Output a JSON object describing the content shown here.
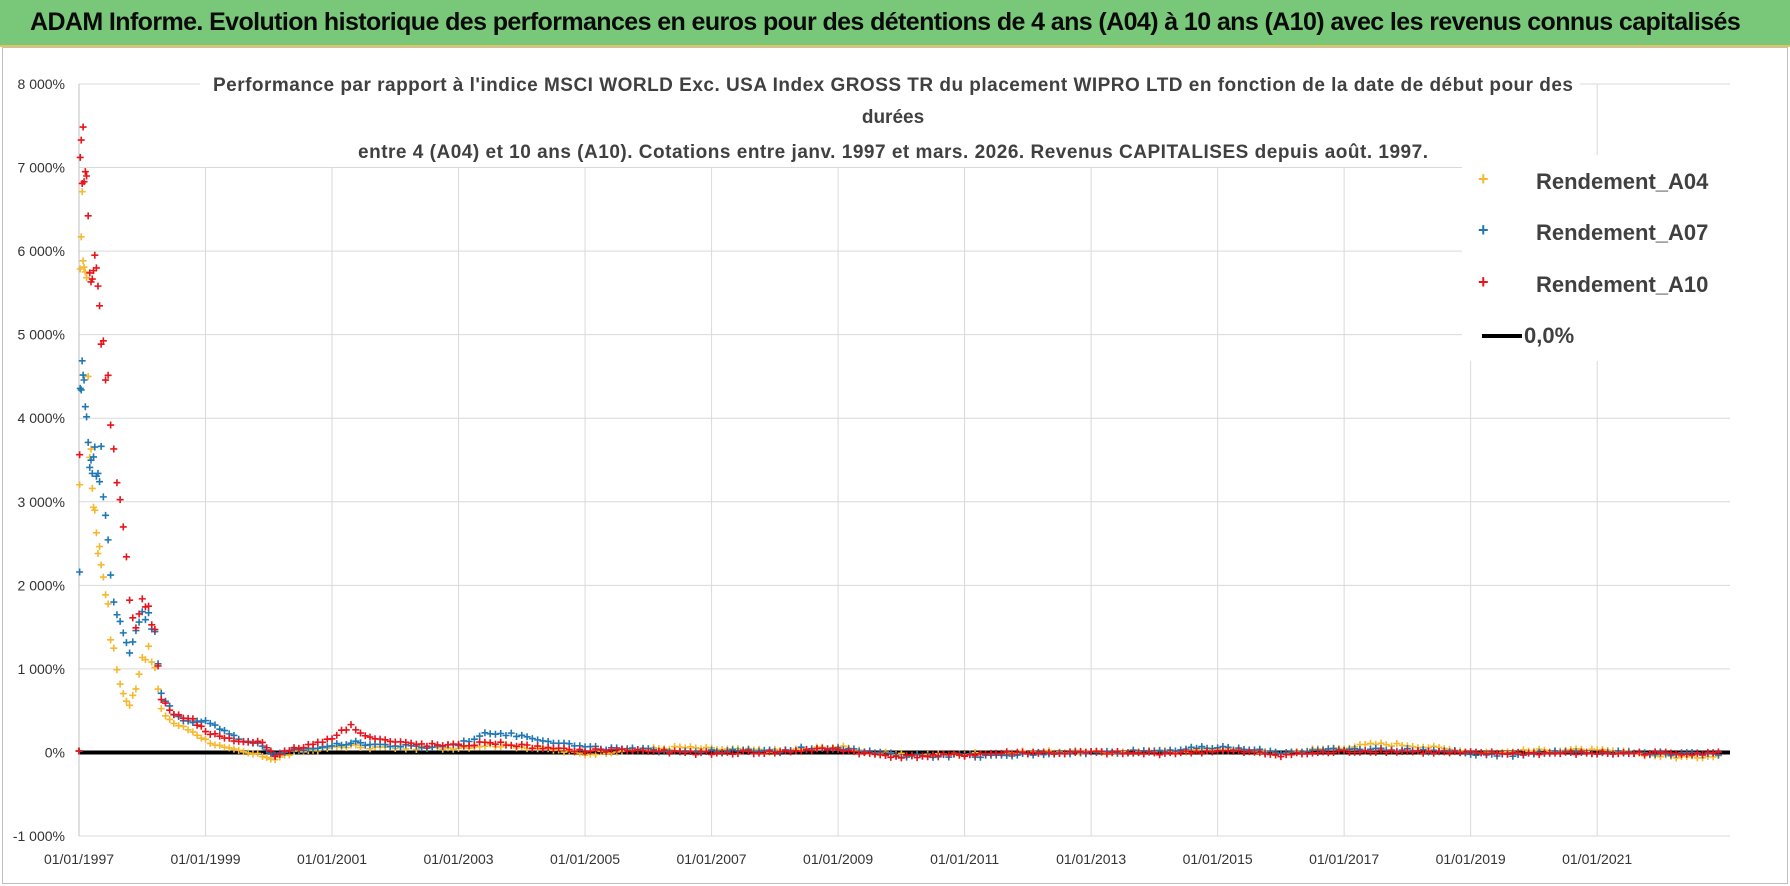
{
  "header": {
    "title": "ADAM Informe. Evolution historique des performances en euros pour des détentions de 4 ans (A04) à 10 ans (A10) avec les revenus connus capitalisés"
  },
  "chart_data": {
    "type": "scatter",
    "title_lines": [
      "Performance par rapport à l'indice MSCI WORLD Exc. USA Index GROSS TR  du placement WIPRO LTD en fonction de la date de début pour des",
      "durées",
      "entre 4 (A04) et 10 ans (A10). Cotations entre janv. 1997 et mars. 2026. Revenus CAPITALISES depuis août. 1997."
    ],
    "y_ticks": [
      "-1 000%",
      "0%",
      "1 000%",
      "2 000%",
      "3 000%",
      "4 000%",
      "5 000%",
      "6 000%",
      "7 000%",
      "8 000%"
    ],
    "x_ticks": [
      "01/01/1997",
      "01/01/1999",
      "01/01/2001",
      "01/01/2003",
      "01/01/2005",
      "01/01/2007",
      "01/01/2009",
      "01/01/2011",
      "01/01/2013",
      "01/01/2015",
      "01/01/2017",
      "01/01/2019",
      "01/01/2021"
    ],
    "ylim": [
      -1000,
      8000
    ],
    "xlim": [
      1997.0,
      2023.1
    ],
    "grid": true,
    "legend_position": "right",
    "reference_line": {
      "name": "0,0%",
      "value": 0,
      "color": "#000000"
    },
    "series": [
      {
        "name": "Rendement_A04",
        "color": "#f5b82e",
        "points": [
          [
            1997.0,
            0
          ],
          [
            1997.02,
            6100
          ],
          [
            1997.05,
            6400
          ],
          [
            1997.08,
            5900
          ],
          [
            1997.12,
            5600
          ],
          [
            1997.17,
            3700
          ],
          [
            1997.21,
            3200
          ],
          [
            1997.25,
            2900
          ],
          [
            1997.3,
            2500
          ],
          [
            1997.35,
            2300
          ],
          [
            1997.42,
            2000
          ],
          [
            1997.5,
            1400
          ],
          [
            1997.6,
            1000
          ],
          [
            1997.7,
            700
          ],
          [
            1997.8,
            550
          ],
          [
            1997.9,
            800
          ],
          [
            1998.0,
            1150
          ],
          [
            1998.1,
            1200
          ],
          [
            1998.2,
            1000
          ],
          [
            1998.3,
            500
          ],
          [
            1998.5,
            350
          ],
          [
            1998.8,
            250
          ],
          [
            1999.0,
            150
          ],
          [
            1999.3,
            50
          ],
          [
            1999.6,
            0
          ],
          [
            1999.9,
            -40
          ],
          [
            2000.1,
            -80
          ],
          [
            2000.4,
            0
          ],
          [
            2000.7,
            30
          ],
          [
            2001.0,
            60
          ],
          [
            2001.3,
            80
          ],
          [
            2001.6,
            60
          ],
          [
            2002.0,
            60
          ],
          [
            2002.5,
            50
          ],
          [
            2003.0,
            60
          ],
          [
            2003.5,
            90
          ],
          [
            2004.0,
            70
          ],
          [
            2004.5,
            30
          ],
          [
            2005.0,
            -20
          ],
          [
            2005.5,
            20
          ],
          [
            2006.0,
            40
          ],
          [
            2006.5,
            60
          ],
          [
            2007.0,
            40
          ],
          [
            2007.5,
            30
          ],
          [
            2008.0,
            20
          ],
          [
            2008.5,
            40
          ],
          [
            2009.0,
            70
          ],
          [
            2009.5,
            0
          ],
          [
            2010.0,
            -30
          ],
          [
            2010.5,
            -30
          ],
          [
            2011.0,
            -20
          ],
          [
            2011.5,
            -10
          ],
          [
            2012.0,
            0
          ],
          [
            2012.5,
            10
          ],
          [
            2013.0,
            0
          ],
          [
            2013.5,
            0
          ],
          [
            2014.0,
            10
          ],
          [
            2014.5,
            20
          ],
          [
            2015.0,
            40
          ],
          [
            2015.5,
            20
          ],
          [
            2016.0,
            -10
          ],
          [
            2016.5,
            30
          ],
          [
            2017.0,
            60
          ],
          [
            2017.5,
            100
          ],
          [
            2018.0,
            90
          ],
          [
            2018.5,
            50
          ],
          [
            2019.0,
            10
          ],
          [
            2019.5,
            0
          ],
          [
            2020.0,
            20
          ],
          [
            2020.5,
            30
          ],
          [
            2021.0,
            20
          ],
          [
            2021.5,
            0
          ],
          [
            2022.0,
            -40
          ],
          [
            2022.5,
            -60
          ],
          [
            2023.0,
            -20
          ]
        ]
      },
      {
        "name": "Rendement_A07",
        "color": "#1f77b4",
        "points": [
          [
            1997.0,
            0
          ],
          [
            1997.02,
            4400
          ],
          [
            1997.05,
            4700
          ],
          [
            1997.08,
            4300
          ],
          [
            1997.12,
            3900
          ],
          [
            1997.17,
            3600
          ],
          [
            1997.21,
            3400
          ],
          [
            1997.25,
            3800
          ],
          [
            1997.3,
            3200
          ],
          [
            1997.35,
            3500
          ],
          [
            1997.42,
            3000
          ],
          [
            1997.5,
            2200
          ],
          [
            1997.6,
            1600
          ],
          [
            1997.7,
            1400
          ],
          [
            1997.8,
            1200
          ],
          [
            1997.9,
            1500
          ],
          [
            1998.0,
            1700
          ],
          [
            1998.1,
            1600
          ],
          [
            1998.2,
            1400
          ],
          [
            1998.3,
            700
          ],
          [
            1998.5,
            450
          ],
          [
            1998.8,
            350
          ],
          [
            1999.0,
            400
          ],
          [
            1999.3,
            250
          ],
          [
            1999.6,
            150
          ],
          [
            1999.9,
            80
          ],
          [
            2000.1,
            -40
          ],
          [
            2000.4,
            20
          ],
          [
            2000.7,
            50
          ],
          [
            2001.0,
            80
          ],
          [
            2001.3,
            120
          ],
          [
            2001.6,
            100
          ],
          [
            2002.0,
            80
          ],
          [
            2002.5,
            60
          ],
          [
            2003.0,
            100
          ],
          [
            2003.5,
            240
          ],
          [
            2004.0,
            200
          ],
          [
            2004.5,
            130
          ],
          [
            2005.0,
            60
          ],
          [
            2005.5,
            40
          ],
          [
            2006.0,
            30
          ],
          [
            2006.5,
            20
          ],
          [
            2007.0,
            10
          ],
          [
            2007.5,
            20
          ],
          [
            2008.0,
            10
          ],
          [
            2008.5,
            50
          ],
          [
            2009.0,
            60
          ],
          [
            2009.5,
            0
          ],
          [
            2010.0,
            -40
          ],
          [
            2010.5,
            -40
          ],
          [
            2011.0,
            -30
          ],
          [
            2011.5,
            -50
          ],
          [
            2012.0,
            -20
          ],
          [
            2012.5,
            0
          ],
          [
            2013.0,
            0
          ],
          [
            2013.5,
            10
          ],
          [
            2014.0,
            20
          ],
          [
            2014.5,
            40
          ],
          [
            2015.0,
            60
          ],
          [
            2015.5,
            30
          ],
          [
            2016.0,
            0
          ],
          [
            2016.5,
            20
          ],
          [
            2017.0,
            30
          ],
          [
            2017.5,
            40
          ],
          [
            2018.0,
            30
          ],
          [
            2018.5,
            20
          ],
          [
            2019.0,
            -10
          ],
          [
            2019.5,
            -40
          ],
          [
            2020.0,
            0
          ],
          [
            2020.5,
            10
          ],
          [
            2021.0,
            0
          ],
          [
            2021.5,
            0
          ],
          [
            2022.0,
            -10
          ],
          [
            2022.5,
            -20
          ],
          [
            2023.0,
            -10
          ]
        ]
      },
      {
        "name": "Rendement_A10",
        "color": "#e8141c",
        "points": [
          [
            1997.0,
            0
          ],
          [
            1997.02,
            6900
          ],
          [
            1997.05,
            7200
          ],
          [
            1997.08,
            7050
          ],
          [
            1997.12,
            6600
          ],
          [
            1997.17,
            6100
          ],
          [
            1997.21,
            5800
          ],
          [
            1997.25,
            5700
          ],
          [
            1997.3,
            5500
          ],
          [
            1997.35,
            4900
          ],
          [
            1997.42,
            4700
          ],
          [
            1997.5,
            4050
          ],
          [
            1997.6,
            3400
          ],
          [
            1997.7,
            2600
          ],
          [
            1997.8,
            1900
          ],
          [
            1997.9,
            1500
          ],
          [
            1998.0,
            1850
          ],
          [
            1998.1,
            1700
          ],
          [
            1998.2,
            1400
          ],
          [
            1998.3,
            650
          ],
          [
            1998.5,
            450
          ],
          [
            1998.8,
            380
          ],
          [
            1999.0,
            250
          ],
          [
            1999.3,
            160
          ],
          [
            1999.6,
            130
          ],
          [
            1999.9,
            120
          ],
          [
            2000.1,
            -30
          ],
          [
            2000.4,
            40
          ],
          [
            2000.7,
            100
          ],
          [
            2001.0,
            180
          ],
          [
            2001.3,
            320
          ],
          [
            2001.6,
            180
          ],
          [
            2002.0,
            120
          ],
          [
            2002.5,
            90
          ],
          [
            2003.0,
            80
          ],
          [
            2003.5,
            120
          ],
          [
            2004.0,
            80
          ],
          [
            2004.5,
            40
          ],
          [
            2005.0,
            20
          ],
          [
            2005.5,
            30
          ],
          [
            2006.0,
            20
          ],
          [
            2006.5,
            0
          ],
          [
            2007.0,
            -10
          ],
          [
            2007.5,
            0
          ],
          [
            2008.0,
            0
          ],
          [
            2008.5,
            30
          ],
          [
            2009.0,
            40
          ],
          [
            2009.5,
            -20
          ],
          [
            2010.0,
            -50
          ],
          [
            2010.5,
            -40
          ],
          [
            2011.0,
            -30
          ],
          [
            2011.5,
            -10
          ],
          [
            2012.0,
            0
          ],
          [
            2012.5,
            -10
          ],
          [
            2013.0,
            0
          ],
          [
            2013.5,
            -10
          ],
          [
            2014.0,
            -10
          ],
          [
            2014.5,
            0
          ],
          [
            2015.0,
            20
          ],
          [
            2015.5,
            0
          ],
          [
            2016.0,
            -30
          ],
          [
            2016.5,
            -10
          ],
          [
            2017.0,
            10
          ],
          [
            2017.5,
            20
          ],
          [
            2018.0,
            10
          ],
          [
            2018.5,
            0
          ],
          [
            2019.0,
            -10
          ],
          [
            2019.5,
            -10
          ],
          [
            2020.0,
            -10
          ],
          [
            2020.5,
            -10
          ],
          [
            2021.0,
            -10
          ],
          [
            2021.5,
            -10
          ],
          [
            2022.0,
            -10
          ],
          [
            2022.5,
            -10
          ],
          [
            2023.0,
            -10
          ]
        ]
      }
    ]
  },
  "legend": {
    "items": [
      {
        "label": "Rendement_A04",
        "marker": "+",
        "color": "#f5b82e"
      },
      {
        "label": "Rendement_A07",
        "marker": "+",
        "color": "#1f77b4"
      },
      {
        "label": "Rendement_A10",
        "marker": "+",
        "color": "#e8141c"
      },
      {
        "label": "0,0%",
        "marker": "line",
        "color": "#000000"
      }
    ]
  }
}
